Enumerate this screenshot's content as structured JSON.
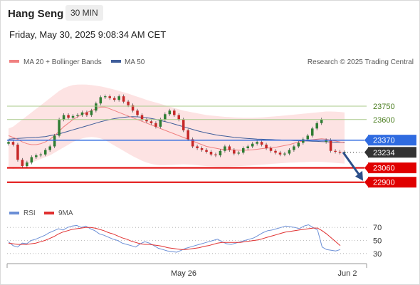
{
  "header": {
    "title": "Hang Seng",
    "timeframe": "30 MIN",
    "datetime": "Friday, May 30, 2025 9:08:34 AM CET"
  },
  "legend": {
    "ma20_label": "MA 20 + Bollinger Bands",
    "ma50_label": "MA 50",
    "credit": "Research © 2025 Trading Central",
    "rsi_label": "RSI",
    "rsi_ma_label": "9MA"
  },
  "colors": {
    "ma20": "#f08080",
    "ma50": "#3f5d9a",
    "band_fill": "#fde3e3",
    "target_green": "#a8c98a",
    "pivot_blue": "#2f6be0",
    "support_red": "#e00000",
    "current_dark": "#333333",
    "arrow": "#2b4f8a",
    "rsi": "#6b8fd6",
    "rsi_ma": "#e03030",
    "candle_up": "#2e7d32",
    "candle_down": "#c62828"
  },
  "chart_data": [
    {
      "type": "candlestick",
      "ylim": [
        22850,
        24100
      ],
      "x_labels": [
        "May 26",
        "Jun 2"
      ],
      "levels": [
        {
          "value": 23750,
          "label": "23750",
          "kind": "resistance"
        },
        {
          "value": 23600,
          "label": "23600",
          "kind": "resistance"
        },
        {
          "value": 23370,
          "label": "23370",
          "kind": "pivot"
        },
        {
          "value": 23234,
          "label": "23234",
          "kind": "current"
        },
        {
          "value": 23060,
          "label": "23060",
          "kind": "support"
        },
        {
          "value": 22900,
          "label": "22900",
          "kind": "support"
        }
      ],
      "close": [
        23350,
        23320,
        23150,
        23080,
        23120,
        23180,
        23200,
        23210,
        23260,
        23300,
        23420,
        23600,
        23650,
        23620,
        23640,
        23650,
        23680,
        23650,
        23700,
        23780,
        23850,
        23860,
        23840,
        23820,
        23860,
        23800,
        23760,
        23700,
        23650,
        23600,
        23580,
        23560,
        23520,
        23600,
        23660,
        23700,
        23650,
        23600,
        23480,
        23380,
        23300,
        23280,
        23260,
        23240,
        23210,
        23200,
        23250,
        23300,
        23260,
        23220,
        23230,
        23280,
        23300,
        23330,
        23350,
        23320,
        23280,
        23250,
        23230,
        23210,
        23220,
        23260,
        23300,
        23340,
        23380,
        23420,
        23500,
        23560,
        23600,
        23370,
        23250,
        23240,
        23230,
        23234
      ],
      "open": [
        23330,
        23350,
        23320,
        23150,
        23080,
        23120,
        23180,
        23200,
        23210,
        23260,
        23300,
        23420,
        23600,
        23650,
        23620,
        23640,
        23650,
        23680,
        23650,
        23700,
        23780,
        23850,
        23860,
        23840,
        23820,
        23860,
        23800,
        23760,
        23700,
        23650,
        23600,
        23580,
        23560,
        23520,
        23600,
        23660,
        23700,
        23650,
        23600,
        23480,
        23380,
        23300,
        23280,
        23260,
        23240,
        23210,
        23200,
        23250,
        23300,
        23260,
        23220,
        23230,
        23280,
        23300,
        23330,
        23350,
        23320,
        23280,
        23250,
        23230,
        23210,
        23220,
        23260,
        23300,
        23340,
        23380,
        23420,
        23500,
        23560,
        23350,
        23370,
        23250,
        23240,
        23230
      ],
      "ma20": [
        23420,
        23400,
        23380,
        23350,
        23330,
        23320,
        23320,
        23330,
        23350,
        23380,
        23420,
        23470,
        23520,
        23560,
        23600,
        23630,
        23660,
        23680,
        23700,
        23720,
        23740,
        23740,
        23720,
        23700,
        23680,
        23660,
        23640,
        23620,
        23600,
        23580,
        23560,
        23540,
        23520,
        23500,
        23480,
        23460,
        23440,
        23420,
        23400,
        23380,
        23360,
        23340,
        23320,
        23300,
        23290,
        23280,
        23270,
        23265,
        23262,
        23260,
        23258,
        23257,
        23258,
        23262,
        23268,
        23275,
        23280,
        23285,
        23290,
        23300,
        23310,
        23320,
        23335,
        23350,
        23360,
        23370,
        23375,
        23380,
        23385,
        23380,
        23370,
        23360,
        23350,
        23340
      ],
      "ma50": [
        23380,
        23385,
        23390,
        23392,
        23395,
        23398,
        23400,
        23405,
        23410,
        23420,
        23430,
        23440,
        23455,
        23470,
        23485,
        23500,
        23515,
        23530,
        23545,
        23560,
        23575,
        23588,
        23600,
        23610,
        23618,
        23625,
        23630,
        23632,
        23630,
        23626,
        23620,
        23612,
        23602,
        23590,
        23578,
        23565,
        23550,
        23535,
        23520,
        23505,
        23490,
        23475,
        23462,
        23450,
        23440,
        23430,
        23422,
        23415,
        23408,
        23402,
        23397,
        23392,
        23388,
        23385,
        23382,
        23380,
        23378,
        23376,
        23374,
        23372,
        23370,
        23368,
        23366,
        23364,
        23362,
        23360,
        23358,
        23356,
        23354,
        23352,
        23350,
        23348,
        23346,
        23345
      ],
      "bb_upper": [
        23500,
        23520,
        23560,
        23600,
        23640,
        23680,
        23720,
        23760,
        23800,
        23840,
        23880,
        23920,
        23950,
        23970,
        23985,
        23990,
        23992,
        23990,
        23985,
        23978,
        23970,
        23960,
        23948,
        23935,
        23920,
        23905,
        23890,
        23872,
        23855,
        23838,
        23820,
        23805,
        23790,
        23775,
        23760,
        23745,
        23730,
        23715,
        23700,
        23690,
        23680,
        23670,
        23660,
        23650,
        23645,
        23640,
        23635,
        23630,
        23628,
        23625,
        23622,
        23620,
        23620,
        23620,
        23622,
        23625,
        23628,
        23632,
        23636,
        23640,
        23645,
        23650,
        23655,
        23660,
        23665,
        23670,
        23675,
        23680,
        23685,
        23690,
        23690,
        23688,
        23685,
        23680
      ],
      "bb_lower": [
        23060,
        23050,
        23060,
        23080,
        23100,
        23120,
        23140,
        23160,
        23180,
        23200,
        23230,
        23260,
        23290,
        23320,
        23350,
        23370,
        23390,
        23400,
        23405,
        23400,
        23390,
        23370,
        23340,
        23310,
        23280,
        23250,
        23220,
        23190,
        23165,
        23140,
        23120,
        23105,
        23095,
        23090,
        23090,
        23092,
        23095,
        23098,
        23100,
        23098,
        23095,
        23090,
        23085,
        23080,
        23078,
        23076,
        23075,
        23075,
        23076,
        23078,
        23080,
        23082,
        23085,
        23088,
        23092,
        23096,
        23100,
        23104,
        23108,
        23112,
        23115,
        23118,
        23120,
        23122,
        23124,
        23126,
        23128,
        23128,
        23126,
        23124,
        23120,
        23116,
        23112,
        23108
      ]
    },
    {
      "type": "line",
      "yticks": [
        70,
        50,
        30
      ],
      "ylim": [
        20,
        80
      ],
      "series": [
        {
          "name": "RSI",
          "values": [
            48,
            42,
            40,
            46,
            45,
            50,
            52,
            55,
            58,
            62,
            65,
            68,
            66,
            70,
            72,
            73,
            70,
            72,
            68,
            65,
            60,
            58,
            55,
            52,
            50,
            46,
            44,
            42,
            40,
            45,
            48,
            46,
            42,
            38,
            36,
            34,
            33,
            32,
            35,
            38,
            40,
            42,
            44,
            46,
            48,
            50,
            52,
            48,
            45,
            44,
            46,
            48,
            50,
            52,
            54,
            58,
            62,
            65,
            66,
            68,
            70,
            72,
            71,
            70,
            68,
            72,
            74,
            70,
            66,
            40,
            36,
            35,
            34,
            36
          ]
        },
        {
          "name": "9MA",
          "values": [
            46,
            45,
            44,
            44,
            44,
            45,
            46,
            48,
            50,
            53,
            56,
            60,
            63,
            65,
            67,
            68,
            69,
            70,
            70,
            69,
            67,
            65,
            62,
            60,
            57,
            54,
            52,
            49,
            47,
            45,
            44,
            44,
            43,
            42,
            41,
            39,
            38,
            37,
            36,
            36,
            37,
            38,
            39,
            41,
            42,
            44,
            46,
            47,
            47,
            47,
            47,
            47,
            48,
            49,
            50,
            51,
            53,
            55,
            57,
            59,
            61,
            63,
            64,
            65,
            66,
            67,
            68,
            69,
            69,
            65,
            60,
            54,
            48,
            42
          ]
        }
      ]
    }
  ]
}
